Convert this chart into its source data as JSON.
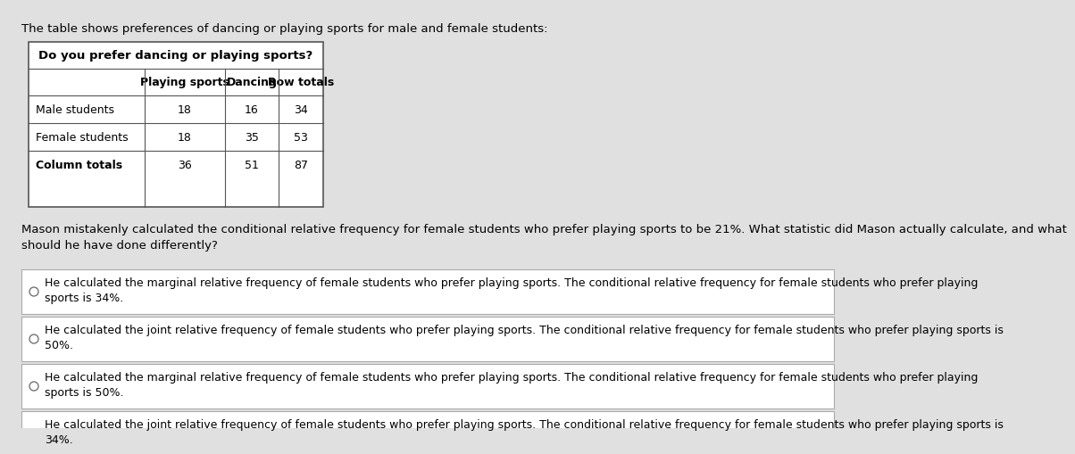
{
  "bg_color": "#e0e0e0",
  "white": "#ffffff",
  "intro_text": "The table shows preferences of dancing or playing sports for male and female students:",
  "table_title": "Do you prefer dancing or playing sports?",
  "col_headers": [
    "",
    "Playing sports",
    "Dancing",
    "Row totals"
  ],
  "rows": [
    [
      "Male students",
      "18",
      "16",
      "34"
    ],
    [
      "Female students",
      "18",
      "35",
      "53"
    ],
    [
      "Column totals",
      "36",
      "51",
      "87"
    ]
  ],
  "question_text": "Mason mistakenly calculated the conditional relative frequency for female students who prefer playing sports to be 21%. What statistic did Mason actually calculate, and what\nshould he have done differently?",
  "options": [
    "He calculated the marginal relative frequency of female students who prefer playing sports. The conditional relative frequency for female students who prefer playing\nsports is 34%.",
    "He calculated the joint relative frequency of female students who prefer playing sports. The conditional relative frequency for female students who prefer playing sports is\n50%.",
    "He calculated the marginal relative frequency of female students who prefer playing sports. The conditional relative frequency for female students who prefer playing\nsports is 50%.",
    "He calculated the joint relative frequency of female students who prefer playing sports. The conditional relative frequency for female students who prefer playing sports is\n34%."
  ],
  "font_size_intro": 9.5,
  "font_size_table_title": 9.5,
  "font_size_table": 9.5,
  "font_size_question": 9.5,
  "font_size_options": 9.0
}
